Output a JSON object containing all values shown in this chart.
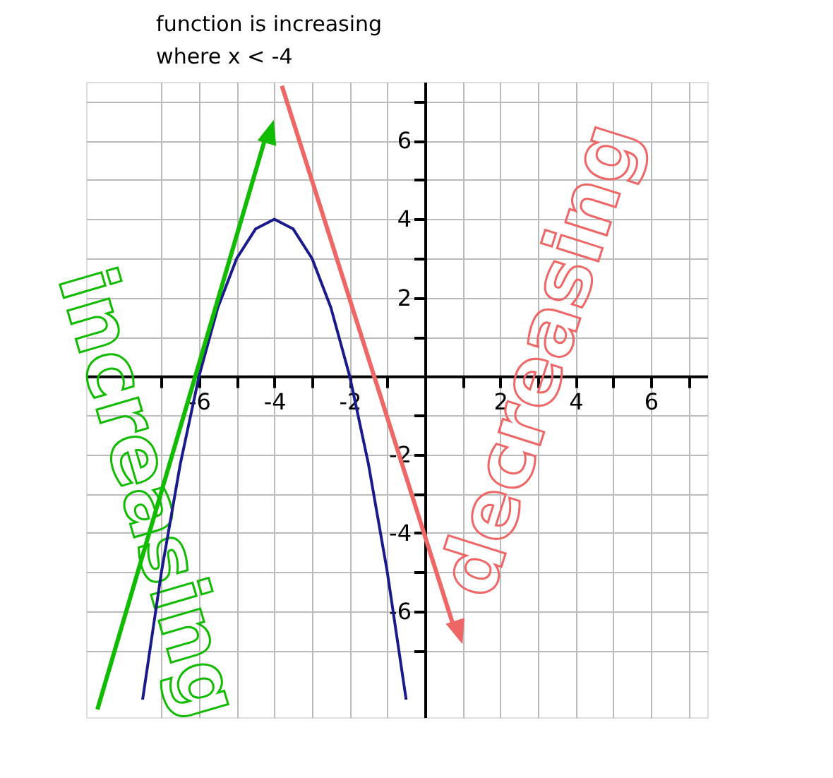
{
  "chart_data": {
    "type": "line",
    "title": "function is increasing",
    "subtitle": "where x < -4",
    "xlim": [
      -9,
      7.5
    ],
    "ylim": [
      -8.7,
      7.5
    ],
    "xticks": [
      {
        "value": -7,
        "label": null
      },
      {
        "value": -6,
        "label": "-6"
      },
      {
        "value": -5,
        "label": null
      },
      {
        "value": -4,
        "label": "-4"
      },
      {
        "value": -3,
        "label": null
      },
      {
        "value": -2,
        "label": "-2"
      },
      {
        "value": -1,
        "label": null
      },
      {
        "value": 1,
        "label": null
      },
      {
        "value": 2,
        "label": "2"
      },
      {
        "value": 3,
        "label": null
      },
      {
        "value": 4,
        "label": "4"
      },
      {
        "value": 5,
        "label": null
      },
      {
        "value": 6,
        "label": "6"
      },
      {
        "value": 7,
        "label": null
      }
    ],
    "yticks": [
      {
        "value": -7,
        "label": null
      },
      {
        "value": -6,
        "label": "-6"
      },
      {
        "value": -5,
        "label": null
      },
      {
        "value": -4,
        "label": "-4"
      },
      {
        "value": -3,
        "label": null
      },
      {
        "value": -2,
        "label": "-2"
      },
      {
        "value": -1,
        "label": null
      },
      {
        "value": 1,
        "label": null
      },
      {
        "value": 2,
        "label": "2"
      },
      {
        "value": 3,
        "label": null
      },
      {
        "value": 4,
        "label": "4"
      },
      {
        "value": 5,
        "label": null
      },
      {
        "value": 6,
        "label": "6"
      },
      {
        "value": 7,
        "label": null
      }
    ],
    "grid": true,
    "marker": "none",
    "line_style": "solid",
    "series": [
      {
        "color": "#1a1a8c",
        "x": [
          -7.5,
          -7,
          -6.5,
          -6,
          -5.5,
          -5,
          -4.5,
          -4,
          -3.5,
          -3,
          -2.5,
          -2,
          -1.5,
          -1,
          -0.5
        ],
        "values": [
          -8.25,
          -5,
          -2.25,
          0,
          1.75,
          3,
          3.75,
          4,
          3.75,
          3,
          1.75,
          0,
          -2.25,
          -5,
          -8.25
        ]
      },
      {
        "color": "#11bb00",
        "marker": "triangle",
        "x": [
          -8.7,
          -4.2
        ],
        "values": [
          -8.5,
          6.2
        ]
      },
      {
        "color": "#ee6666",
        "marker": "triangle",
        "x": [
          -3.8,
          0.8
        ],
        "values": [
          7.4,
          -6.5
        ]
      }
    ],
    "annotations": [
      "increasing",
      "decreasing"
    ]
  }
}
